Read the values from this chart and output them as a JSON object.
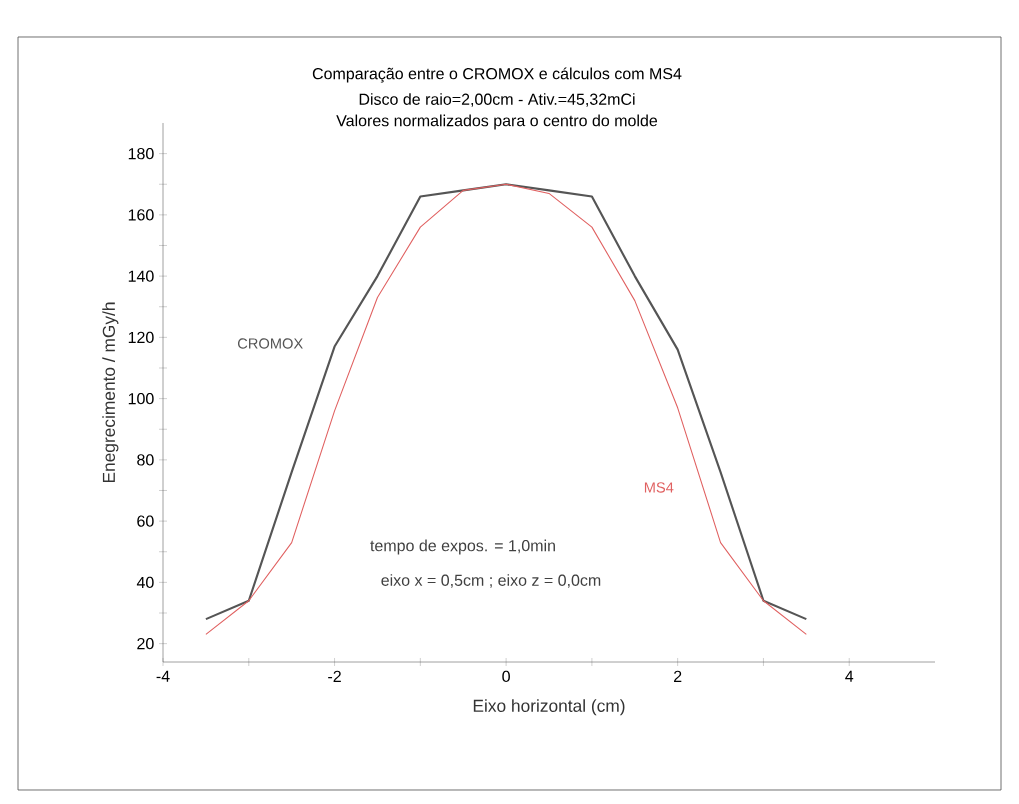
{
  "chart_data": {
    "type": "line",
    "title": "Comparação entre o CROMOX e cálculos com MS4",
    "subtitle": "Disco de raio=2,00cm - Ativ.=45,32mCi",
    "xlabel": "Eixo horizontal  (cm)",
    "ylabel": "Enegrecimento / mGy/h",
    "annotations": [
      "Valores normalizados para o centro do molde",
      "tempo de expos. = 1,0min",
      "eixo  x = 0,5cm ;  eixo z = 0,0cm"
    ],
    "x": [
      -3.5,
      -3,
      -2.5,
      -2,
      -1.5,
      -1,
      -0.5,
      0,
      0.5,
      1,
      1.5,
      2,
      2.5,
      3,
      3.5
    ],
    "series": [
      {
        "name": "CROMOX",
        "color": "#555555",
        "values": [
          28,
          34,
          76,
          117,
          140,
          166,
          168,
          170,
          168,
          166,
          140,
          116,
          76,
          34,
          28
        ]
      },
      {
        "name": "MS4",
        "color": "#e06060",
        "values": [
          23,
          34,
          53,
          96,
          133,
          156,
          168,
          170,
          167,
          156,
          132,
          97,
          53,
          34,
          23
        ]
      }
    ],
    "xlim": [
      -4,
      5
    ],
    "ylim": [
      14,
      190
    ],
    "xticks": [
      -4,
      {
        "value": -3,
        "label": null
      },
      -2,
      {
        "value": -1,
        "label": null
      },
      0,
      {
        "value": 1,
        "label": null
      },
      2,
      {
        "value": 3,
        "label": null
      },
      4
    ],
    "yticks": [
      20,
      {
        "value": 30,
        "label": null
      },
      40,
      {
        "value": 50,
        "label": null
      },
      60,
      {
        "value": 70,
        "label": null
      },
      80,
      {
        "value": 90,
        "label": null
      },
      100,
      {
        "value": 110,
        "label": null
      },
      120,
      {
        "value": 130,
        "label": null
      },
      140,
      {
        "value": 150,
        "label": null
      },
      160,
      {
        "value": 170,
        "label": null
      },
      180
    ]
  }
}
